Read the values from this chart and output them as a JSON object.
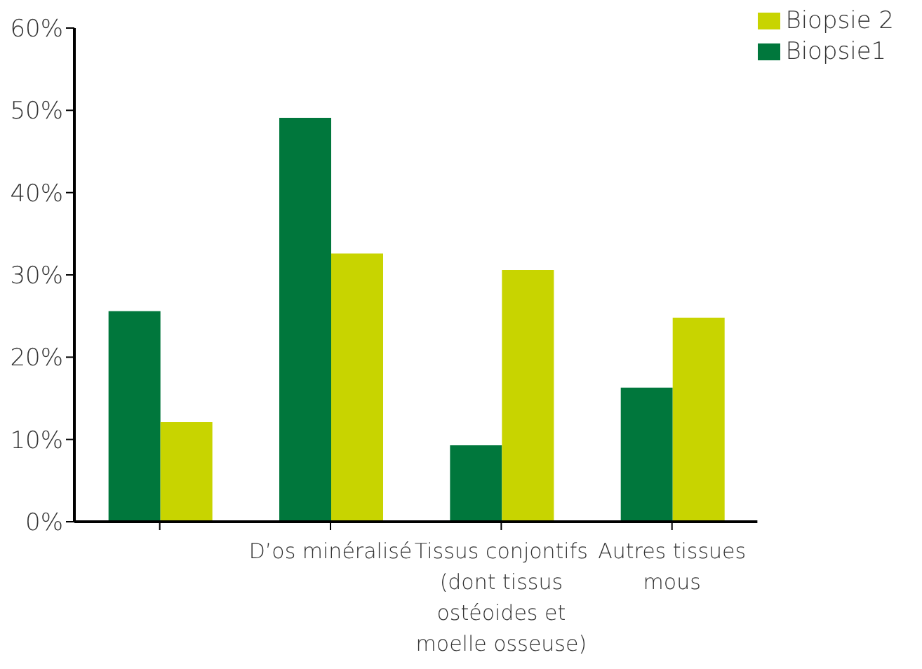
{
  "chart_data": {
    "type": "bar",
    "categories": [
      null,
      "D’os minéralisé",
      "Tissus conjontifs (dont tissus ostéoides et moelle osseuse)",
      "Autres tissues mous"
    ],
    "series": [
      {
        "name": "Biopsie1",
        "color": "#00773c",
        "values": [
          25.6,
          49.1,
          9.3,
          16.3
        ]
      },
      {
        "name": "Biopsie 2",
        "color": "#c8d400",
        "values": [
          12.1,
          32.6,
          30.6,
          24.8
        ]
      }
    ],
    "ylim": [
      0,
      60
    ],
    "yticks": [
      {
        "value": 0,
        "label": "0%"
      },
      {
        "value": 10,
        "label": "10%"
      },
      {
        "value": 20,
        "label": "20%"
      },
      {
        "value": 30,
        "label": "30%"
      },
      {
        "value": 40,
        "label": "40%"
      },
      {
        "value": 50,
        "label": "50%"
      },
      {
        "value": 60,
        "label": "60%"
      }
    ],
    "grid": false,
    "legend": "top right"
  }
}
